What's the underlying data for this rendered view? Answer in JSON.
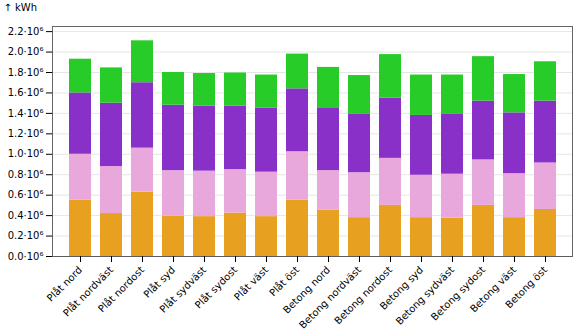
{
  "chart_data": {
    "type": "bar",
    "stacked": true,
    "ylabel": "kWh",
    "categories": [
      "Plåt nord",
      "Plåt nordväst",
      "Plåt nordost",
      "Plåt syd",
      "Plåt sydväst",
      "Plåt sydost",
      "Plåt väst",
      "Plåt öst",
      "Betong nord",
      "Betong nordväst",
      "Betong nordost",
      "Betong syd",
      "Betong sydväst",
      "Betong sydost",
      "Betong väst",
      "Betong öst"
    ],
    "series": [
      {
        "color": "#E8A020",
        "values": [
          550000,
          420000,
          630000,
          395000,
          390000,
          425000,
          390000,
          550000,
          455000,
          380000,
          500000,
          380000,
          375000,
          500000,
          380000,
          460000
        ]
      },
      {
        "color": "#E8A8DC",
        "values": [
          450000,
          460000,
          430000,
          445000,
          445000,
          425000,
          435000,
          475000,
          385000,
          440000,
          460000,
          415000,
          430000,
          445000,
          430000,
          455000
        ]
      },
      {
        "color": "#8830C8",
        "values": [
          600000,
          620000,
          640000,
          640000,
          635000,
          620000,
          625000,
          615000,
          615000,
          575000,
          590000,
          585000,
          585000,
          575000,
          595000,
          605000
        ]
      },
      {
        "color": "#28CC28",
        "values": [
          330000,
          345000,
          410000,
          320000,
          320000,
          325000,
          325000,
          340000,
          395000,
          375000,
          425000,
          395000,
          385000,
          435000,
          375000,
          385000
        ]
      }
    ],
    "ylim": [
      0,
      2250000
    ],
    "yticks": [
      {
        "value": 0,
        "label": "0.0·10⁶"
      },
      {
        "value": 200000,
        "label": "0.2·10⁶"
      },
      {
        "value": 400000,
        "label": "0.4·10⁶"
      },
      {
        "value": 600000,
        "label": "0.6·10⁶"
      },
      {
        "value": 800000,
        "label": "0.8·10⁶"
      },
      {
        "value": 1000000,
        "label": "1.0·10⁶"
      },
      {
        "value": 1200000,
        "label": "1.2·10⁶"
      },
      {
        "value": 1400000,
        "label": "1.4·10⁶"
      },
      {
        "value": 1600000,
        "label": "1.6·10⁶"
      },
      {
        "value": 1800000,
        "label": "1.8·10⁶"
      },
      {
        "value": 2000000,
        "label": "2.0·10⁶"
      },
      {
        "value": 2200000,
        "label": "2.2·10⁶"
      }
    ],
    "grid": true
  }
}
